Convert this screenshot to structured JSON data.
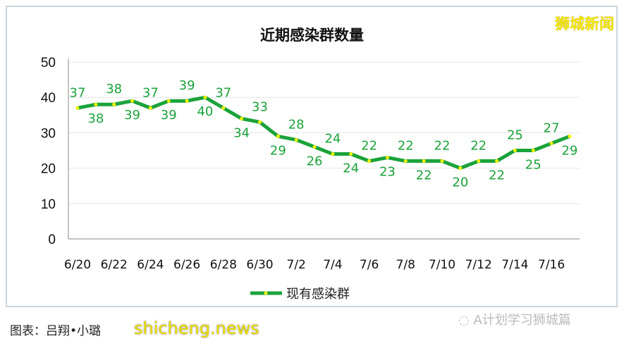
{
  "watermark": "狮城新闻",
  "credit": "图表：吕翔•小璐",
  "site_watermark": "shicheng.news",
  "account": "A计划学习狮城篇",
  "chart_data": {
    "type": "line",
    "title": "近期感染群数量",
    "categories": [
      "6/20",
      "6/21",
      "6/22",
      "6/23",
      "6/24",
      "6/25",
      "6/26",
      "6/27",
      "6/28",
      "6/29",
      "6/30",
      "7/1",
      "7/2",
      "7/3",
      "7/4",
      "7/5",
      "7/6",
      "7/7",
      "7/8",
      "7/9",
      "7/10",
      "7/11",
      "7/12",
      "7/13",
      "7/14",
      "7/15",
      "7/16",
      "7/17"
    ],
    "tick_labels": [
      "6/20",
      "6/22",
      "6/24",
      "6/26",
      "6/28",
      "6/30",
      "7/2",
      "7/4",
      "7/6",
      "7/8",
      "7/10",
      "7/12",
      "7/14",
      "7/16"
    ],
    "series": [
      {
        "name": "现有感染群",
        "values": [
          37,
          38,
          38,
          39,
          37,
          39,
          39,
          40,
          37,
          34,
          33,
          29,
          28,
          26,
          24,
          24,
          22,
          23,
          22,
          22,
          22,
          20,
          22,
          22,
          25,
          25,
          27,
          29
        ]
      }
    ],
    "ylim": [
      0,
      50
    ],
    "yticks": [
      0,
      10,
      20,
      30,
      40,
      50
    ],
    "grid": true,
    "legend": "bottom",
    "colors": {
      "line": "#1aa33a",
      "marker": "#f2f200",
      "label": "#1aa33a"
    }
  }
}
